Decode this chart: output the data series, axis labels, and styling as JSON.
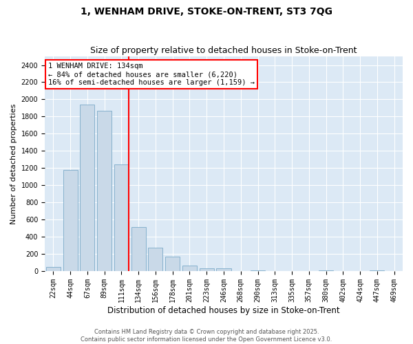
{
  "title1": "1, WENHAM DRIVE, STOKE-ON-TRENT, ST3 7QG",
  "title2": "Size of property relative to detached houses in Stoke-on-Trent",
  "xlabel": "Distribution of detached houses by size in Stoke-on-Trent",
  "ylabel": "Number of detached properties",
  "categories": [
    "22sqm",
    "44sqm",
    "67sqm",
    "89sqm",
    "111sqm",
    "134sqm",
    "156sqm",
    "178sqm",
    "201sqm",
    "223sqm",
    "246sqm",
    "268sqm",
    "290sqm",
    "313sqm",
    "335sqm",
    "357sqm",
    "380sqm",
    "402sqm",
    "424sqm",
    "447sqm",
    "469sqm"
  ],
  "values": [
    50,
    1180,
    1940,
    1870,
    1240,
    510,
    270,
    165,
    65,
    30,
    30,
    0,
    10,
    0,
    0,
    0,
    5,
    0,
    0,
    5,
    0
  ],
  "bar_color": "#c9d9e8",
  "bar_edge_color": "#7aaac8",
  "vline_x_index": 4,
  "vline_color": "red",
  "annotation_text": "1 WENHAM DRIVE: 134sqm\n← 84% of detached houses are smaller (6,220)\n16% of semi-detached houses are larger (1,159) →",
  "ylim": [
    0,
    2500
  ],
  "yticks": [
    0,
    200,
    400,
    600,
    800,
    1000,
    1200,
    1400,
    1600,
    1800,
    2000,
    2200,
    2400
  ],
  "background_color": "#dce9f5",
  "footer_text": "Contains HM Land Registry data © Crown copyright and database right 2025.\nContains public sector information licensed under the Open Government Licence v3.0.",
  "title1_fontsize": 10,
  "title2_fontsize": 9,
  "tick_fontsize": 7,
  "ylabel_fontsize": 8,
  "xlabel_fontsize": 8.5,
  "annotation_fontsize": 7.5,
  "footer_fontsize": 6
}
